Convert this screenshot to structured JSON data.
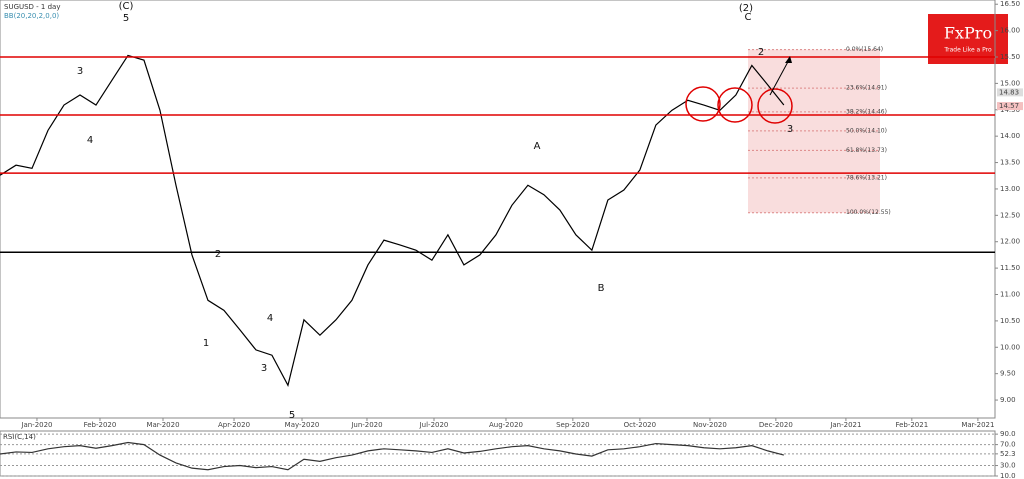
{
  "header": {
    "title": "SUGUSD - 1 day",
    "indicator": "BB(20,20,2,0,0)"
  },
  "logo": {
    "name": "FxPro",
    "tagline": "Trade Like a Pro"
  },
  "chart_data": [
    {
      "type": "line",
      "series": [
        {
          "name": "SUGUSD",
          "color": "#000000",
          "values": [
            13.26,
            13.45,
            13.39,
            14.11,
            14.59,
            14.78,
            14.59,
            15.06,
            15.53,
            15.44,
            14.49,
            13.07,
            11.75,
            10.89,
            10.7,
            10.33,
            9.95,
            9.85,
            9.28,
            10.52,
            10.23,
            10.52,
            10.89,
            11.56,
            12.03,
            11.94,
            11.84,
            11.65,
            12.13,
            11.56,
            11.75,
            12.13,
            12.69,
            13.07,
            12.89,
            12.6,
            12.13,
            11.84,
            12.79,
            12.98,
            13.36,
            14.21,
            14.49,
            14.68,
            14.59,
            14.49,
            14.78,
            15.34,
            14.97,
            14.59
          ]
        }
      ],
      "xlim": [
        0,
        62.2
      ],
      "xticks": [
        {
          "value": 2.31,
          "label": "Jan-2020"
        },
        {
          "value": 6.25,
          "label": "Feb-2020"
        },
        {
          "value": 10.19,
          "label": "Mar-2020"
        },
        {
          "value": 14.63,
          "label": "Apr-2020"
        },
        {
          "value": 18.88,
          "label": "May-2020"
        },
        {
          "value": 22.94,
          "label": "Jun-2020"
        },
        {
          "value": 27.13,
          "label": "Jul-2020"
        },
        {
          "value": 31.63,
          "label": "Aug-2020"
        },
        {
          "value": 35.81,
          "label": "Sep-2020"
        },
        {
          "value": 40,
          "label": "Oct-2020"
        },
        {
          "value": 44.38,
          "label": "Nov-2020"
        },
        {
          "value": 48.5,
          "label": "Dec-2020"
        },
        {
          "value": 52.88,
          "label": "Jan-2021"
        },
        {
          "value": 57,
          "label": "Feb-2021"
        },
        {
          "value": 61.13,
          "label": "Mar-2021"
        }
      ],
      "ylim": [
        8.66,
        16.58
      ],
      "yticks": [
        {
          "value": 9,
          "label": "9.00"
        },
        {
          "value": 9.5,
          "label": "9.50"
        },
        {
          "value": 10,
          "label": "10.00"
        },
        {
          "value": 10.5,
          "label": "10.50"
        },
        {
          "value": 11,
          "label": "11.00"
        },
        {
          "value": 11.5,
          "label": "11.50"
        },
        {
          "value": 12,
          "label": "12.00"
        },
        {
          "value": 12.5,
          "label": "12.50"
        },
        {
          "value": 13,
          "label": "13.00"
        },
        {
          "value": 13.5,
          "label": "13.50"
        },
        {
          "value": 14,
          "label": "14.00"
        },
        {
          "value": 14.5,
          "label": "14.50"
        },
        {
          "value": 15,
          "label": "15.00"
        },
        {
          "value": 15.5,
          "label": "15.50"
        },
        {
          "value": 16,
          "label": "16.00"
        },
        {
          "value": 16.5,
          "label": "16.50"
        }
      ],
      "levels": [
        {
          "value": 15.5,
          "color": "#e00000"
        },
        {
          "value": 14.4,
          "color": "#e00000"
        },
        {
          "value": 13.3,
          "color": "#e00000"
        },
        {
          "value": 11.8,
          "color": "#000000"
        }
      ],
      "fibonacci": [
        {
          "value": 15.64,
          "label": "0.0%(15.64)"
        },
        {
          "value": 14.91,
          "label": "23.6%(14.91)"
        },
        {
          "value": 14.46,
          "label": "38.2%(14.46)"
        },
        {
          "value": 14.1,
          "label": "50.0%(14.10)"
        },
        {
          "value": 13.73,
          "label": "61.8%(13.73)"
        },
        {
          "value": 13.21,
          "label": "78.6%(13.21)"
        },
        {
          "value": 12.55,
          "label": "100.0%(12.55)"
        }
      ],
      "price_labels": [
        {
          "value": 14.83,
          "label": "14.83"
        },
        {
          "value": 14.57,
          "label": "14.57"
        }
      ],
      "annotations": [
        "(C)",
        "5",
        "3",
        "4",
        "2",
        "1",
        "3",
        "4",
        "5",
        "A",
        "B",
        "C",
        "(2)",
        "2",
        "3"
      ]
    },
    {
      "type": "line",
      "title": "RSI(C,14)",
      "series": [
        {
          "name": "RSI",
          "color": "#333333",
          "values": [
            52,
            56,
            55,
            62,
            66,
            68,
            63,
            68,
            74,
            70,
            50,
            35,
            25,
            22,
            28,
            30,
            26,
            28,
            22,
            42,
            38,
            45,
            50,
            58,
            62,
            60,
            58,
            55,
            62,
            54,
            57,
            62,
            66,
            68,
            62,
            58,
            52,
            48,
            60,
            62,
            66,
            72,
            70,
            68,
            64,
            62,
            64,
            68,
            58,
            50
          ]
        }
      ],
      "ylim": [
        10,
        96
      ],
      "yticks": [
        {
          "value": 90,
          "label": "90.0"
        },
        {
          "value": 70,
          "label": "70.0"
        },
        52.3,
        {
          "value": 30,
          "label": "30.0"
        },
        {
          "value": 10,
          "label": "10.0"
        }
      ]
    }
  ]
}
